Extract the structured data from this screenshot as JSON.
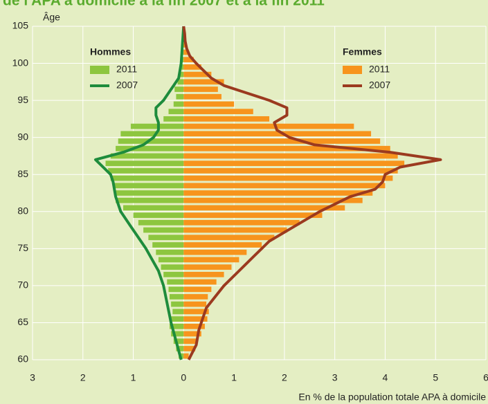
{
  "chart_data": {
    "type": "pyramid",
    "title": "de l'APA à domicile à la fin 2007 et à la fin 2011",
    "y_label": "Âge",
    "x_label": "En % de la population totale APA à domicile",
    "xlim": [
      -3,
      6
    ],
    "xticks": [
      {
        "value": -3,
        "label": "3"
      },
      {
        "value": -2,
        "label": "2"
      },
      {
        "value": -1,
        "label": "1"
      },
      0,
      1,
      2,
      3,
      4,
      5,
      6
    ],
    "ylim": [
      60,
      105
    ],
    "yticks": [
      60,
      65,
      70,
      75,
      80,
      85,
      90,
      95,
      100,
      105
    ],
    "grid": true,
    "groups": [
      {
        "name": "Hommes",
        "side": "left",
        "series": [
          {
            "name": "2011",
            "kind": "bar",
            "color": "#8dc63f",
            "y": [
              60,
              61,
              62,
              63,
              64,
              65,
              66,
              67,
              68,
              69,
              70,
              71,
              72,
              73,
              74,
              75,
              76,
              77,
              78,
              79,
              80,
              81,
              82,
              83,
              84,
              85,
              86,
              87,
              88,
              89,
              90,
              91,
              92,
              93,
              94,
              95,
              96,
              97,
              98,
              99,
              100,
              101,
              102,
              103,
              104
            ],
            "values": [
              0.1,
              0.15,
              0.2,
              0.25,
              0.28,
              0.25,
              0.22,
              0.25,
              0.28,
              0.3,
              0.33,
              0.4,
              0.45,
              0.5,
              0.55,
              0.62,
              0.7,
              0.8,
              0.9,
              1.0,
              1.2,
              1.35,
              1.35,
              1.4,
              1.45,
              1.5,
              1.55,
              1.45,
              1.35,
              1.3,
              1.25,
              1.05,
              0.4,
              0.3,
              0.2,
              0.15,
              0.18,
              0.12,
              0.1,
              0.08,
              0.05,
              0.03,
              0.02,
              0.01,
              0.01
            ]
          },
          {
            "name": "2007",
            "kind": "line",
            "color": "#1e8c3c",
            "y": [
              60,
              65,
              70,
              72,
              75,
              78,
              80,
              82,
              84,
              85,
              86,
              87,
              88,
              89,
              90,
              91,
              92,
              93,
              94,
              95,
              96,
              97,
              98,
              100,
              105
            ],
            "values": [
              0.05,
              0.25,
              0.4,
              0.5,
              0.75,
              1.05,
              1.25,
              1.35,
              1.4,
              1.45,
              1.6,
              1.75,
              1.2,
              0.8,
              0.6,
              0.5,
              0.5,
              0.55,
              0.55,
              0.4,
              0.3,
              0.2,
              0.1,
              0.05,
              0
            ]
          }
        ]
      },
      {
        "name": "Femmes",
        "side": "right",
        "series": [
          {
            "name": "2011",
            "kind": "bar",
            "color": "#f7941d",
            "y": [
              60,
              61,
              62,
              63,
              64,
              65,
              66,
              67,
              68,
              69,
              70,
              71,
              72,
              73,
              74,
              75,
              76,
              77,
              78,
              79,
              80,
              81,
              82,
              83,
              84,
              85,
              86,
              87,
              88,
              89,
              90,
              91,
              92,
              93,
              94,
              95,
              96,
              97,
              98,
              99,
              100,
              101,
              102,
              103,
              104
            ],
            "values": [
              0.1,
              0.23,
              0.27,
              0.35,
              0.42,
              0.47,
              0.5,
              0.45,
              0.48,
              0.55,
              0.65,
              0.8,
              0.95,
              1.1,
              1.25,
              1.55,
              1.8,
              2.05,
              2.3,
              2.75,
              3.2,
              3.55,
              3.75,
              4.0,
              4.15,
              4.25,
              4.38,
              4.25,
              4.1,
              3.9,
              3.72,
              3.38,
              1.7,
              1.38,
              1.0,
              0.75,
              0.68,
              0.8,
              0.55,
              0.35,
              0.2,
              0.1,
              0.05,
              0.03,
              0.02
            ]
          },
          {
            "name": "2007",
            "kind": "line",
            "color": "#9b3a1f",
            "y": [
              60,
              62,
              64,
              65,
              67,
              70,
              72,
              74,
              76,
              78,
              80,
              82,
              83,
              84,
              85,
              86,
              87,
              88,
              89,
              90,
              91,
              92,
              93,
              94,
              95,
              96,
              97,
              98,
              99,
              100,
              101,
              102,
              103,
              104,
              105
            ],
            "values": [
              0.1,
              0.25,
              0.3,
              0.35,
              0.45,
              0.8,
              1.1,
              1.4,
              1.7,
              2.2,
              2.7,
              3.3,
              3.8,
              3.95,
              4.0,
              4.3,
              5.1,
              4.1,
              2.6,
              2.1,
              1.85,
              1.8,
              2.05,
              2.05,
              1.7,
              1.25,
              0.8,
              0.55,
              0.4,
              0.25,
              0.12,
              0.06,
              0.03,
              0.02,
              0
            ]
          }
        ]
      }
    ]
  }
}
